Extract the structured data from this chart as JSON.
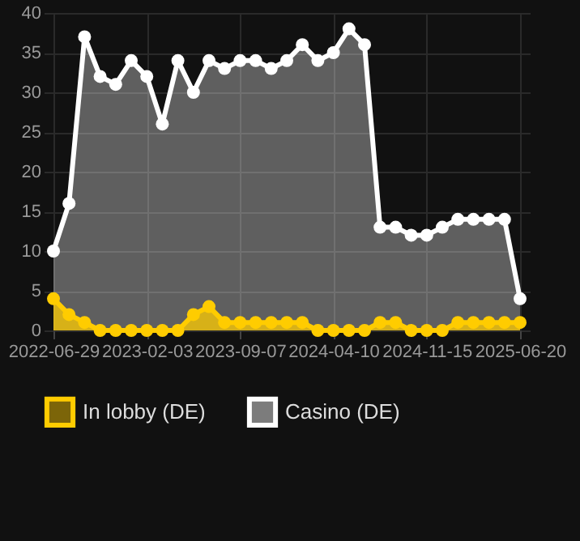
{
  "chart_data": {
    "type": "area",
    "categories": [
      "2022-06-29",
      null,
      null,
      null,
      null,
      null,
      "2023-02-03",
      null,
      null,
      null,
      null,
      null,
      "2023-09-07",
      null,
      null,
      null,
      null,
      null,
      "2024-04-10",
      null,
      null,
      null,
      null,
      null,
      "2024-11-15",
      null,
      null,
      null,
      null,
      null,
      "2025-06-20"
    ],
    "series": [
      {
        "name": "In lobby (DE)",
        "color": "#ffcc00",
        "values": [
          4,
          2,
          1,
          0,
          0,
          0,
          0,
          0,
          0,
          2,
          3,
          1,
          1,
          1,
          1,
          1,
          1,
          0,
          0,
          0,
          0,
          1,
          1,
          0,
          0,
          0,
          1,
          1,
          1,
          1,
          1
        ]
      },
      {
        "name": "Casino (DE)",
        "color": "#ffffff",
        "values": [
          10,
          16,
          37,
          32,
          31,
          34,
          32,
          26,
          34,
          30,
          34,
          33,
          34,
          34,
          33,
          34,
          36,
          34,
          35,
          38,
          36,
          13,
          13,
          12,
          12,
          13,
          14,
          14,
          14,
          14,
          4
        ]
      }
    ],
    "ylim": [
      0,
      40
    ],
    "yticks": [
      0,
      5,
      10,
      15,
      20,
      25,
      30,
      35,
      40
    ],
    "grid": true,
    "legend": "bottom",
    "marker": "circle",
    "line_style": "solid"
  }
}
